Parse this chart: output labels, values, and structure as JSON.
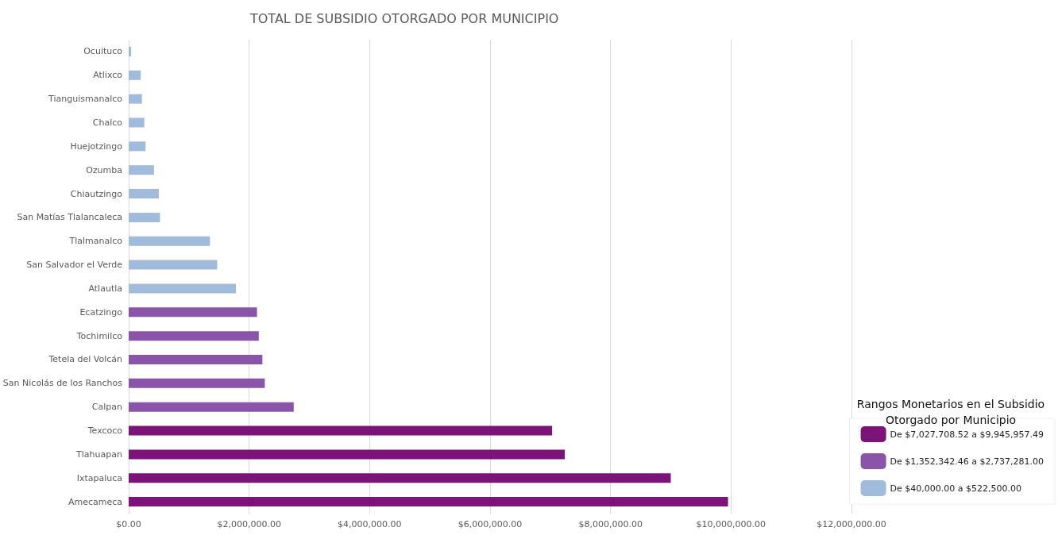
{
  "chart_data": {
    "type": "bar",
    "orientation": "horizontal",
    "stacked": true,
    "title": "TOTAL DE SUBSIDIO OTORGADO POR MUNICIPIO",
    "legend_title": "Rangos Monetarios en el Subsidio Otorgado por Municipio",
    "legend": "bottom right",
    "grid": "x",
    "categories": [
      "Ocuituco",
      "Atlixco",
      "Tianguismanalco",
      "Chalco",
      "Huejotzingo",
      "Ozumba",
      "Chiautzingo",
      "San Matías Tlalancaleca",
      "Tlalmanalco",
      "San Salvador el Verde",
      "Atlautla",
      "Ecatzingo",
      "Tochimilco",
      "Tetela del Volcán",
      "San Nicolás de los Ranchos",
      "Calpan",
      "Texcoco",
      "Tlahuapan",
      "Ixtapaluca",
      "Amecameca"
    ],
    "series": [
      {
        "name": "De $7,027,708.52 a $9,945,957.49",
        "color": "#7b1378",
        "values": [
          null,
          null,
          null,
          null,
          null,
          null,
          null,
          null,
          null,
          null,
          null,
          null,
          null,
          null,
          null,
          null,
          7030000,
          7240000,
          9000000,
          9950000
        ]
      },
      {
        "name": "De $1,352,342.46 a $2,737,281.00",
        "color": "#8a55a8",
        "values": [
          null,
          null,
          null,
          null,
          null,
          null,
          null,
          null,
          null,
          null,
          null,
          2130000,
          2160000,
          2220000,
          2260000,
          2740000,
          null,
          null,
          null,
          null
        ]
      },
      {
        "name": "De $40,000.00 a $522,500.00",
        "color": "#a0bbdb",
        "values": [
          40000,
          200000,
          220000,
          260000,
          280000,
          420000,
          500000,
          520000,
          1350000,
          1470000,
          1780000,
          null,
          null,
          null,
          null,
          null,
          null,
          null,
          null,
          null
        ]
      }
    ],
    "xlim": [
      0,
      12000000
    ],
    "xticks": [
      {
        "value": 0,
        "label": "$0.00"
      },
      {
        "value": 2000000,
        "label": "$2,000,000.00"
      },
      {
        "value": 4000000,
        "label": "$4,000,000.00"
      },
      {
        "value": 6000000,
        "label": "$6,000,000.00"
      },
      {
        "value": 8000000,
        "label": "$8,000,000.00"
      },
      {
        "value": 10000000,
        "label": "$10,000,000.00"
      },
      {
        "value": 12000000,
        "label": "$12,000,000.00"
      }
    ]
  }
}
